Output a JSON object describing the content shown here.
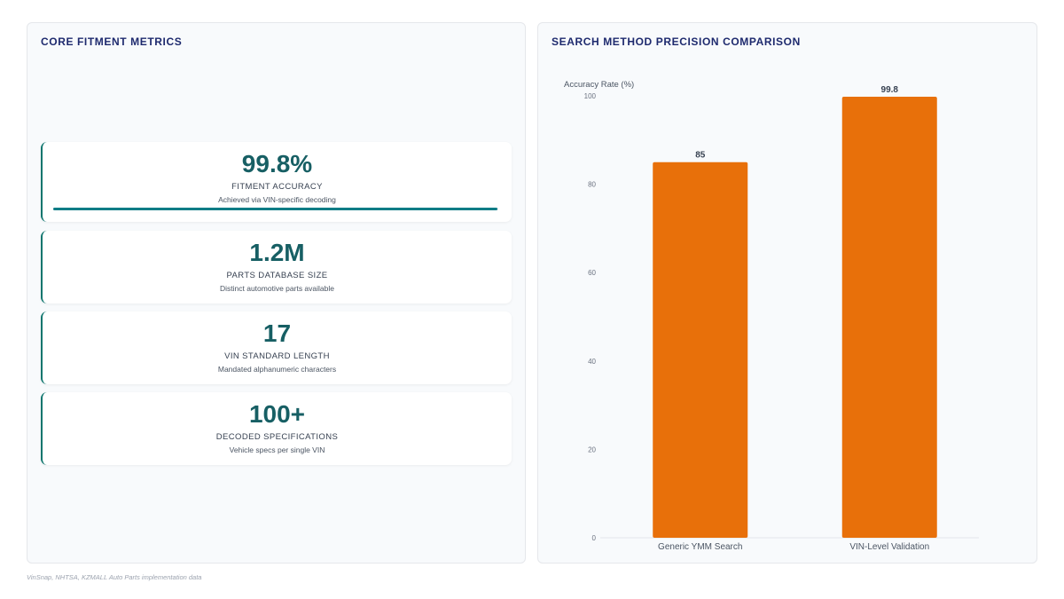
{
  "left_panel": {
    "title": "CORE FITMENT METRICS",
    "metrics": [
      {
        "value": "99.8%",
        "label": "FITMENT ACCURACY",
        "sub": "Achieved via VIN-specific decoding",
        "progress": 0.998
      },
      {
        "value": "1.2M",
        "label": "PARTS DATABASE SIZE",
        "sub": "Distinct automotive parts available"
      },
      {
        "value": "17",
        "label": "VIN STANDARD LENGTH",
        "sub": "Mandated alphanumeric characters"
      },
      {
        "value": "100+",
        "label": "DECODED SPECIFICATIONS",
        "sub": "Vehicle specs per single VIN"
      }
    ]
  },
  "right_panel": {
    "title": "SEARCH METHOD PRECISION COMPARISON"
  },
  "chart_data": {
    "type": "bar",
    "title": "SEARCH METHOD PRECISION COMPARISON",
    "categories": [
      "Generic YMM Search",
      "VIN-Level Validation"
    ],
    "values": [
      85,
      99.8
    ],
    "value_labels": [
      "85",
      "99.8"
    ],
    "ylabel": "Accuracy Rate (%)",
    "xlabel": "",
    "ylim": [
      0,
      100
    ],
    "yticks": [
      0,
      20,
      40,
      60,
      80,
      100
    ],
    "grid": false,
    "legend": "none",
    "bar_color": "#e8700a"
  },
  "footnote": "VinSnap, NHTSA, KZMALL Auto Parts implementation data"
}
